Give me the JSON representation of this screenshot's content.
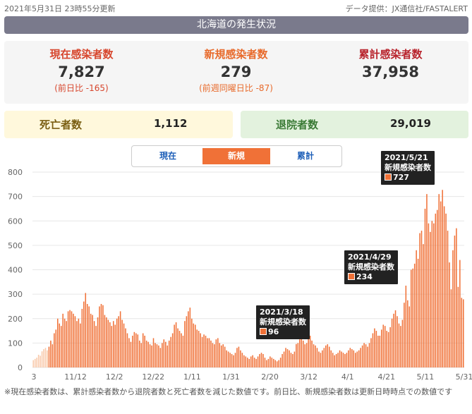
{
  "meta": {
    "updated": "2021年5月31日 23時55分更新",
    "source": "データ提供：JX通信社/FASTALERT"
  },
  "title": "北海道の発生状況",
  "stats": {
    "current": {
      "label": "現在感染者数",
      "value": "7,827",
      "compare": "(前日比 -165)"
    },
    "new": {
      "label": "新規感染者数",
      "value": "279",
      "compare": "(前週同曜日比 -87)"
    },
    "total": {
      "label": "累計感染者数",
      "value": "37,958"
    }
  },
  "deaths": {
    "label": "死亡者数",
    "value": "1,112"
  },
  "discharged": {
    "label": "退院者数",
    "value": "29,019"
  },
  "tabs": [
    {
      "label": "現在",
      "active": false
    },
    {
      "label": "新規",
      "active": true
    },
    {
      "label": "累計",
      "active": false
    }
  ],
  "colors": {
    "bar": "#f07137",
    "bar_light": "#f9c8a8"
  },
  "chart_data": {
    "type": "bar",
    "ylim": [
      0,
      800
    ],
    "yticks": [
      0,
      100,
      200,
      300,
      400,
      500,
      600,
      700,
      800
    ],
    "xtick_labels": [
      "3",
      "11/12",
      "12/2",
      "12/22",
      "1/11",
      "1/31",
      "2/20",
      "3/12",
      "4/1",
      "4/21",
      "5/11",
      "5/31"
    ],
    "annotations": [
      {
        "date": "2021/3/18",
        "series": "新規感染者数",
        "value": 96
      },
      {
        "date": "2021/4/29",
        "series": "新規感染者数",
        "value": 234
      },
      {
        "date": "2021/5/21",
        "series": "新規感染者数",
        "value": 727
      }
    ],
    "values": [
      30,
      35,
      40,
      52,
      48,
      66,
      75,
      80,
      70,
      85,
      110,
      95,
      140,
      155,
      200,
      180,
      170,
      220,
      200,
      190,
      230,
      235,
      230,
      220,
      210,
      190,
      200,
      180,
      240,
      270,
      305,
      260,
      250,
      220,
      215,
      190,
      170,
      205,
      250,
      260,
      255,
      215,
      205,
      195,
      185,
      170,
      190,
      175,
      200,
      210,
      230,
      195,
      180,
      160,
      140,
      120,
      105,
      130,
      145,
      140,
      135,
      110,
      100,
      140,
      130,
      110,
      105,
      95,
      90,
      120,
      100,
      95,
      90,
      80,
      100,
      115,
      105,
      90,
      110,
      125,
      140,
      175,
      185,
      160,
      150,
      140,
      130,
      190,
      210,
      230,
      245,
      200,
      180,
      175,
      155,
      150,
      140,
      125,
      135,
      130,
      120,
      120,
      110,
      100,
      95,
      115,
      120,
      100,
      90,
      95,
      85,
      70,
      65,
      60,
      55,
      50,
      60,
      80,
      85,
      70,
      60,
      50,
      45,
      40,
      35,
      45,
      50,
      40,
      35,
      45,
      55,
      60,
      55,
      40,
      30,
      35,
      45,
      40,
      35,
      30,
      25,
      30,
      40,
      55,
      65,
      80,
      75,
      70,
      60,
      55,
      65,
      96,
      100,
      115,
      125,
      110,
      95,
      100,
      150,
      130,
      110,
      95,
      90,
      80,
      65,
      60,
      70,
      80,
      90,
      95,
      85,
      70,
      60,
      50,
      55,
      60,
      70,
      65,
      60,
      55,
      60,
      70,
      80,
      75,
      70,
      60,
      65,
      70,
      80,
      90,
      100,
      95,
      85,
      100,
      120,
      140,
      160,
      150,
      130,
      130,
      155,
      175,
      170,
      150,
      145,
      165,
      200,
      220,
      234,
      210,
      180,
      170,
      195,
      265,
      335,
      275,
      250,
      400,
      405,
      425,
      480,
      445,
      550,
      560,
      505,
      650,
      710,
      590,
      555,
      600,
      590,
      630,
      645,
      710,
      680,
      727,
      660,
      630,
      560,
      430,
      320,
      480,
      540,
      570,
      330,
      440,
      285,
      279
    ]
  }
}
